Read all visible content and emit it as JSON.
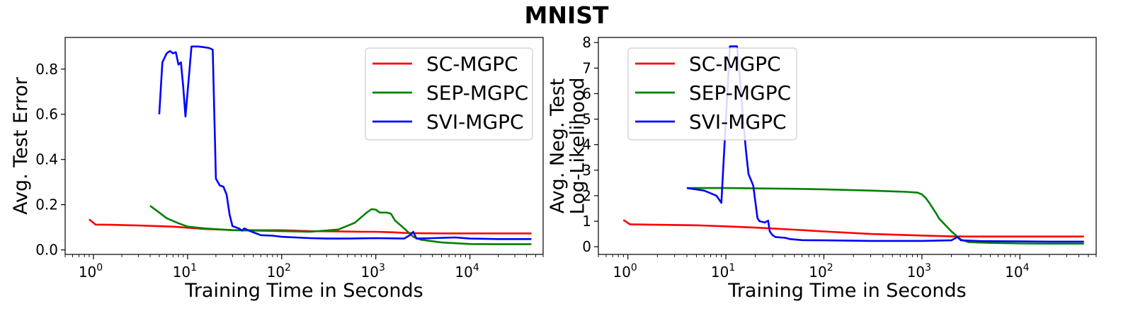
{
  "figure_title": "MNIST",
  "chart_data": [
    {
      "type": "line",
      "xscale": "log",
      "xlabel": "Training Time in Seconds",
      "ylabel": "Avg. Test Error",
      "xlim": [
        0.5,
        60000
      ],
      "ylim": [
        -0.02,
        0.94
      ],
      "yticks": [
        0.0,
        0.2,
        0.4,
        0.6,
        0.8
      ],
      "ytick_labels": [
        "0.0",
        "0.2",
        "0.4",
        "0.6",
        "0.8"
      ],
      "xticks": [
        1,
        10,
        100,
        1000,
        10000
      ],
      "legend": "upper-right",
      "series": [
        {
          "name": "SC-MGPC",
          "color": "#ff0000",
          "points": [
            [
              0.9,
              0.135
            ],
            [
              1.05,
              0.112
            ],
            [
              1.5,
              0.111
            ],
            [
              3,
              0.108
            ],
            [
              7,
              0.103
            ],
            [
              15,
              0.093
            ],
            [
              30,
              0.088
            ],
            [
              60,
              0.087
            ],
            [
              100,
              0.087
            ],
            [
              200,
              0.083
            ],
            [
              400,
              0.082
            ],
            [
              700,
              0.08
            ],
            [
              1000,
              0.08
            ],
            [
              1500,
              0.078
            ],
            [
              2000,
              0.075
            ],
            [
              2500,
              0.074
            ],
            [
              5000,
              0.073
            ],
            [
              10000,
              0.073
            ],
            [
              20000,
              0.073
            ],
            [
              45000,
              0.073
            ]
          ]
        },
        {
          "name": "SEP-MGPC",
          "color": "#008000",
          "points": [
            [
              4,
              0.195
            ],
            [
              5,
              0.165
            ],
            [
              6,
              0.14
            ],
            [
              8,
              0.118
            ],
            [
              10,
              0.103
            ],
            [
              15,
              0.095
            ],
            [
              30,
              0.087
            ],
            [
              60,
              0.085
            ],
            [
              100,
              0.083
            ],
            [
              200,
              0.08
            ],
            [
              400,
              0.09
            ],
            [
              600,
              0.12
            ],
            [
              800,
              0.165
            ],
            [
              900,
              0.18
            ],
            [
              1000,
              0.178
            ],
            [
              1100,
              0.165
            ],
            [
              1300,
              0.165
            ],
            [
              1450,
              0.16
            ],
            [
              1600,
              0.13
            ],
            [
              2000,
              0.095
            ],
            [
              2500,
              0.058
            ],
            [
              3000,
              0.045
            ],
            [
              5000,
              0.033
            ],
            [
              10000,
              0.026
            ],
            [
              20000,
              0.025
            ],
            [
              45000,
              0.025
            ]
          ]
        },
        {
          "name": "SVI-MGPC",
          "color": "#0000ff",
          "points": [
            [
              5,
              0.6
            ],
            [
              5.4,
              0.83
            ],
            [
              6,
              0.87
            ],
            [
              6.5,
              0.88
            ],
            [
              7,
              0.87
            ],
            [
              7.5,
              0.875
            ],
            [
              8,
              0.82
            ],
            [
              8.5,
              0.83
            ],
            [
              9,
              0.72
            ],
            [
              9.5,
              0.59
            ],
            [
              10.5,
              0.8
            ],
            [
              11,
              0.9
            ],
            [
              13,
              0.9
            ],
            [
              15,
              0.897
            ],
            [
              17,
              0.893
            ],
            [
              18.5,
              0.886
            ],
            [
              20,
              0.315
            ],
            [
              21,
              0.3
            ],
            [
              22,
              0.285
            ],
            [
              24,
              0.28
            ],
            [
              26,
              0.245
            ],
            [
              28,
              0.155
            ],
            [
              30,
              0.105
            ],
            [
              35,
              0.095
            ],
            [
              38,
              0.085
            ],
            [
              40,
              0.095
            ],
            [
              45,
              0.085
            ],
            [
              60,
              0.065
            ],
            [
              80,
              0.063
            ],
            [
              100,
              0.058
            ],
            [
              200,
              0.052
            ],
            [
              300,
              0.05
            ],
            [
              500,
              0.05
            ],
            [
              1000,
              0.052
            ],
            [
              2000,
              0.05
            ],
            [
              2300,
              0.065
            ],
            [
              2500,
              0.08
            ],
            [
              2700,
              0.05
            ],
            [
              4000,
              0.052
            ],
            [
              7000,
              0.055
            ],
            [
              10000,
              0.05
            ],
            [
              20000,
              0.048
            ],
            [
              45000,
              0.048
            ]
          ]
        }
      ]
    },
    {
      "type": "line",
      "xscale": "log",
      "xlabel": "Training Time in Seconds",
      "ylabel": "Avg. Neg. Test Log-Likelihood",
      "ylabel_lines": [
        "Avg. Neg. Test",
        "Log-Likelihood"
      ],
      "xlim": [
        0.5,
        60000
      ],
      "ylim": [
        -0.3,
        8.2
      ],
      "yticks": [
        0,
        1,
        2,
        3,
        4,
        5,
        6,
        7,
        8
      ],
      "ytick_labels": [
        "0",
        "1",
        "2",
        "3",
        "4",
        "5",
        "6",
        "7",
        "8"
      ],
      "xticks": [
        1,
        10,
        100,
        1000,
        10000
      ],
      "legend": "upper-left",
      "series": [
        {
          "name": "SC-MGPC",
          "color": "#ff0000",
          "points": [
            [
              0.9,
              1.05
            ],
            [
              1.05,
              0.88
            ],
            [
              2,
              0.86
            ],
            [
              5,
              0.84
            ],
            [
              10,
              0.8
            ],
            [
              20,
              0.75
            ],
            [
              50,
              0.67
            ],
            [
              100,
              0.6
            ],
            [
              300,
              0.5
            ],
            [
              1000,
              0.44
            ],
            [
              2000,
              0.41
            ],
            [
              3000,
              0.4
            ],
            [
              10000,
              0.4
            ],
            [
              45000,
              0.4
            ]
          ]
        },
        {
          "name": "SEP-MGPC",
          "color": "#008000",
          "points": [
            [
              4,
              2.3
            ],
            [
              10,
              2.3
            ],
            [
              50,
              2.27
            ],
            [
              100,
              2.25
            ],
            [
              300,
              2.2
            ],
            [
              700,
              2.15
            ],
            [
              900,
              2.12
            ],
            [
              1000,
              2.05
            ],
            [
              1100,
              1.9
            ],
            [
              1200,
              1.7
            ],
            [
              1400,
              1.3
            ],
            [
              1500,
              1.1
            ],
            [
              2000,
              0.6
            ],
            [
              2500,
              0.28
            ],
            [
              3000,
              0.18
            ],
            [
              5000,
              0.15
            ],
            [
              10000,
              0.13
            ],
            [
              20000,
              0.12
            ],
            [
              45000,
              0.12
            ]
          ]
        },
        {
          "name": "SVI-MGPC",
          "color": "#0000ff",
          "points": [
            [
              4,
              2.3
            ],
            [
              6,
              2.2
            ],
            [
              8,
              2.0
            ],
            [
              9,
              1.72
            ],
            [
              10,
              5.0
            ],
            [
              11,
              7.85
            ],
            [
              13,
              7.85
            ],
            [
              14,
              6.5
            ],
            [
              15,
              5.0
            ],
            [
              16,
              3.8
            ],
            [
              17,
              2.85
            ],
            [
              19,
              2.4
            ],
            [
              21,
              1.12
            ],
            [
              22,
              1.0
            ],
            [
              25,
              0.95
            ],
            [
              27,
              1.02
            ],
            [
              28,
              0.6
            ],
            [
              30,
              0.45
            ],
            [
              32,
              0.38
            ],
            [
              40,
              0.35
            ],
            [
              45,
              0.3
            ],
            [
              60,
              0.26
            ],
            [
              100,
              0.25
            ],
            [
              300,
              0.23
            ],
            [
              1000,
              0.23
            ],
            [
              2000,
              0.25
            ],
            [
              2300,
              0.38
            ],
            [
              2500,
              0.25
            ],
            [
              4000,
              0.22
            ],
            [
              10000,
              0.21
            ],
            [
              20000,
              0.2
            ],
            [
              45000,
              0.2
            ]
          ]
        }
      ]
    }
  ]
}
